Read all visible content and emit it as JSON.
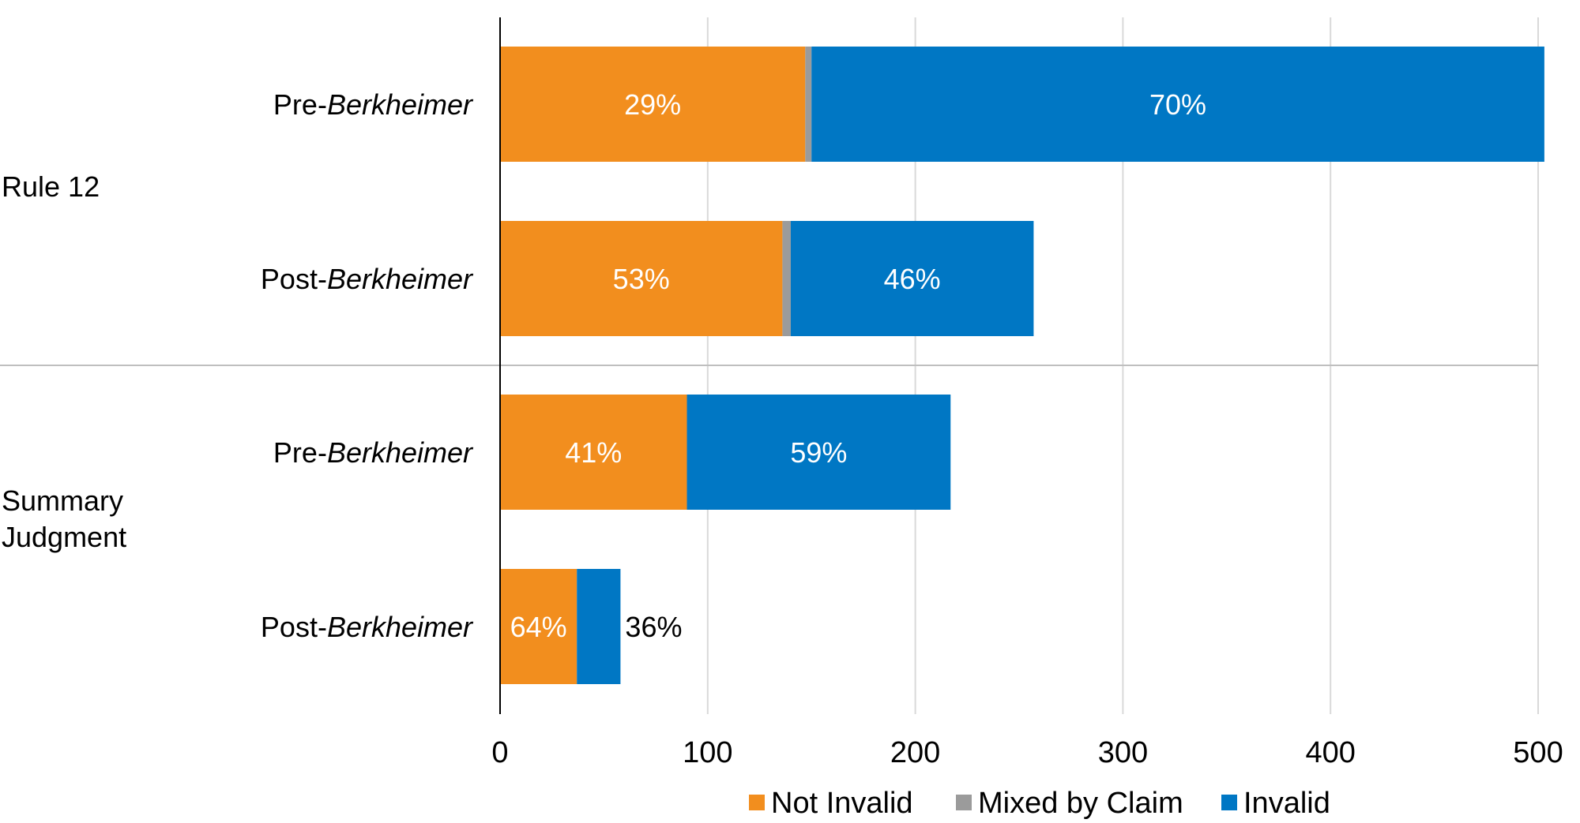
{
  "chart_data": {
    "type": "bar",
    "orientation": "horizontal",
    "stacked": true,
    "title": "",
    "xlabel": "",
    "ylabel": "",
    "xlim": [
      0,
      500
    ],
    "xticks": [
      0,
      100,
      200,
      300,
      400,
      500
    ],
    "grid": true,
    "legend_position": "bottom",
    "groups": [
      {
        "label": "Rule 12",
        "categories": [
          {
            "prefix": "Pre-",
            "name": "Berkheimer"
          },
          {
            "prefix": "Post-",
            "name": "Berkheimer"
          }
        ]
      },
      {
        "label": "Summary Judgment",
        "label_lines": [
          "Summary",
          "Judgment"
        ],
        "categories": [
          {
            "prefix": "Pre-",
            "name": "Berkheimer"
          },
          {
            "prefix": "Post-",
            "name": "Berkheimer"
          }
        ]
      }
    ],
    "series": [
      {
        "name": "Not Invalid",
        "color": "#F28E1E",
        "values": [
          147,
          136,
          90,
          37
        ],
        "labels": [
          "29%",
          "53%",
          "41%",
          "64%"
        ]
      },
      {
        "name": "Mixed by Claim",
        "color": "#9B9B9B",
        "values": [
          3,
          4,
          0,
          0
        ],
        "labels": [
          "",
          "",
          "",
          ""
        ]
      },
      {
        "name": "Invalid",
        "color": "#0077C4",
        "values": [
          353,
          117,
          127,
          21
        ],
        "labels": [
          "70%",
          "46%",
          "59%",
          "36%"
        ],
        "label_outside": [
          false,
          false,
          false,
          true
        ]
      }
    ]
  }
}
